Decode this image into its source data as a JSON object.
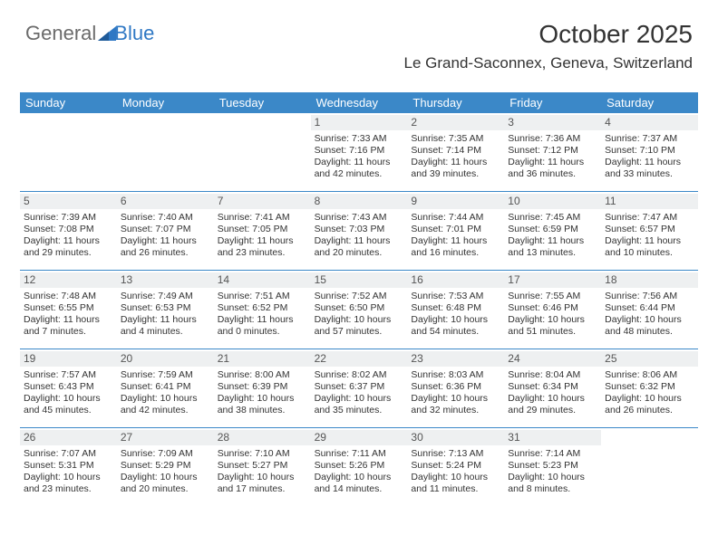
{
  "logo": {
    "text1": "General",
    "text2": "Blue",
    "triangle_color": "#2f78c4"
  },
  "header": {
    "title": "October 2025",
    "location": "Le Grand-Saconnex, Geneva, Switzerland"
  },
  "colors": {
    "header_bg": "#3b88c8",
    "header_fg": "#ffffff",
    "cell_num_bg": "#eef0f1",
    "border": "#3b88c8"
  },
  "day_names": [
    "Sunday",
    "Monday",
    "Tuesday",
    "Wednesday",
    "Thursday",
    "Friday",
    "Saturday"
  ],
  "weeks": [
    [
      {
        "n": "",
        "sr": "",
        "ss": "",
        "dl1": "",
        "dl2": ""
      },
      {
        "n": "",
        "sr": "",
        "ss": "",
        "dl1": "",
        "dl2": ""
      },
      {
        "n": "",
        "sr": "",
        "ss": "",
        "dl1": "",
        "dl2": ""
      },
      {
        "n": "1",
        "sr": "Sunrise: 7:33 AM",
        "ss": "Sunset: 7:16 PM",
        "dl1": "Daylight: 11 hours",
        "dl2": "and 42 minutes."
      },
      {
        "n": "2",
        "sr": "Sunrise: 7:35 AM",
        "ss": "Sunset: 7:14 PM",
        "dl1": "Daylight: 11 hours",
        "dl2": "and 39 minutes."
      },
      {
        "n": "3",
        "sr": "Sunrise: 7:36 AM",
        "ss": "Sunset: 7:12 PM",
        "dl1": "Daylight: 11 hours",
        "dl2": "and 36 minutes."
      },
      {
        "n": "4",
        "sr": "Sunrise: 7:37 AM",
        "ss": "Sunset: 7:10 PM",
        "dl1": "Daylight: 11 hours",
        "dl2": "and 33 minutes."
      }
    ],
    [
      {
        "n": "5",
        "sr": "Sunrise: 7:39 AM",
        "ss": "Sunset: 7:08 PM",
        "dl1": "Daylight: 11 hours",
        "dl2": "and 29 minutes."
      },
      {
        "n": "6",
        "sr": "Sunrise: 7:40 AM",
        "ss": "Sunset: 7:07 PM",
        "dl1": "Daylight: 11 hours",
        "dl2": "and 26 minutes."
      },
      {
        "n": "7",
        "sr": "Sunrise: 7:41 AM",
        "ss": "Sunset: 7:05 PM",
        "dl1": "Daylight: 11 hours",
        "dl2": "and 23 minutes."
      },
      {
        "n": "8",
        "sr": "Sunrise: 7:43 AM",
        "ss": "Sunset: 7:03 PM",
        "dl1": "Daylight: 11 hours",
        "dl2": "and 20 minutes."
      },
      {
        "n": "9",
        "sr": "Sunrise: 7:44 AM",
        "ss": "Sunset: 7:01 PM",
        "dl1": "Daylight: 11 hours",
        "dl2": "and 16 minutes."
      },
      {
        "n": "10",
        "sr": "Sunrise: 7:45 AM",
        "ss": "Sunset: 6:59 PM",
        "dl1": "Daylight: 11 hours",
        "dl2": "and 13 minutes."
      },
      {
        "n": "11",
        "sr": "Sunrise: 7:47 AM",
        "ss": "Sunset: 6:57 PM",
        "dl1": "Daylight: 11 hours",
        "dl2": "and 10 minutes."
      }
    ],
    [
      {
        "n": "12",
        "sr": "Sunrise: 7:48 AM",
        "ss": "Sunset: 6:55 PM",
        "dl1": "Daylight: 11 hours",
        "dl2": "and 7 minutes."
      },
      {
        "n": "13",
        "sr": "Sunrise: 7:49 AM",
        "ss": "Sunset: 6:53 PM",
        "dl1": "Daylight: 11 hours",
        "dl2": "and 4 minutes."
      },
      {
        "n": "14",
        "sr": "Sunrise: 7:51 AM",
        "ss": "Sunset: 6:52 PM",
        "dl1": "Daylight: 11 hours",
        "dl2": "and 0 minutes."
      },
      {
        "n": "15",
        "sr": "Sunrise: 7:52 AM",
        "ss": "Sunset: 6:50 PM",
        "dl1": "Daylight: 10 hours",
        "dl2": "and 57 minutes."
      },
      {
        "n": "16",
        "sr": "Sunrise: 7:53 AM",
        "ss": "Sunset: 6:48 PM",
        "dl1": "Daylight: 10 hours",
        "dl2": "and 54 minutes."
      },
      {
        "n": "17",
        "sr": "Sunrise: 7:55 AM",
        "ss": "Sunset: 6:46 PM",
        "dl1": "Daylight: 10 hours",
        "dl2": "and 51 minutes."
      },
      {
        "n": "18",
        "sr": "Sunrise: 7:56 AM",
        "ss": "Sunset: 6:44 PM",
        "dl1": "Daylight: 10 hours",
        "dl2": "and 48 minutes."
      }
    ],
    [
      {
        "n": "19",
        "sr": "Sunrise: 7:57 AM",
        "ss": "Sunset: 6:43 PM",
        "dl1": "Daylight: 10 hours",
        "dl2": "and 45 minutes."
      },
      {
        "n": "20",
        "sr": "Sunrise: 7:59 AM",
        "ss": "Sunset: 6:41 PM",
        "dl1": "Daylight: 10 hours",
        "dl2": "and 42 minutes."
      },
      {
        "n": "21",
        "sr": "Sunrise: 8:00 AM",
        "ss": "Sunset: 6:39 PM",
        "dl1": "Daylight: 10 hours",
        "dl2": "and 38 minutes."
      },
      {
        "n": "22",
        "sr": "Sunrise: 8:02 AM",
        "ss": "Sunset: 6:37 PM",
        "dl1": "Daylight: 10 hours",
        "dl2": "and 35 minutes."
      },
      {
        "n": "23",
        "sr": "Sunrise: 8:03 AM",
        "ss": "Sunset: 6:36 PM",
        "dl1": "Daylight: 10 hours",
        "dl2": "and 32 minutes."
      },
      {
        "n": "24",
        "sr": "Sunrise: 8:04 AM",
        "ss": "Sunset: 6:34 PM",
        "dl1": "Daylight: 10 hours",
        "dl2": "and 29 minutes."
      },
      {
        "n": "25",
        "sr": "Sunrise: 8:06 AM",
        "ss": "Sunset: 6:32 PM",
        "dl1": "Daylight: 10 hours",
        "dl2": "and 26 minutes."
      }
    ],
    [
      {
        "n": "26",
        "sr": "Sunrise: 7:07 AM",
        "ss": "Sunset: 5:31 PM",
        "dl1": "Daylight: 10 hours",
        "dl2": "and 23 minutes."
      },
      {
        "n": "27",
        "sr": "Sunrise: 7:09 AM",
        "ss": "Sunset: 5:29 PM",
        "dl1": "Daylight: 10 hours",
        "dl2": "and 20 minutes."
      },
      {
        "n": "28",
        "sr": "Sunrise: 7:10 AM",
        "ss": "Sunset: 5:27 PM",
        "dl1": "Daylight: 10 hours",
        "dl2": "and 17 minutes."
      },
      {
        "n": "29",
        "sr": "Sunrise: 7:11 AM",
        "ss": "Sunset: 5:26 PM",
        "dl1": "Daylight: 10 hours",
        "dl2": "and 14 minutes."
      },
      {
        "n": "30",
        "sr": "Sunrise: 7:13 AM",
        "ss": "Sunset: 5:24 PM",
        "dl1": "Daylight: 10 hours",
        "dl2": "and 11 minutes."
      },
      {
        "n": "31",
        "sr": "Sunrise: 7:14 AM",
        "ss": "Sunset: 5:23 PM",
        "dl1": "Daylight: 10 hours",
        "dl2": "and 8 minutes."
      },
      {
        "n": "",
        "sr": "",
        "ss": "",
        "dl1": "",
        "dl2": ""
      }
    ]
  ]
}
